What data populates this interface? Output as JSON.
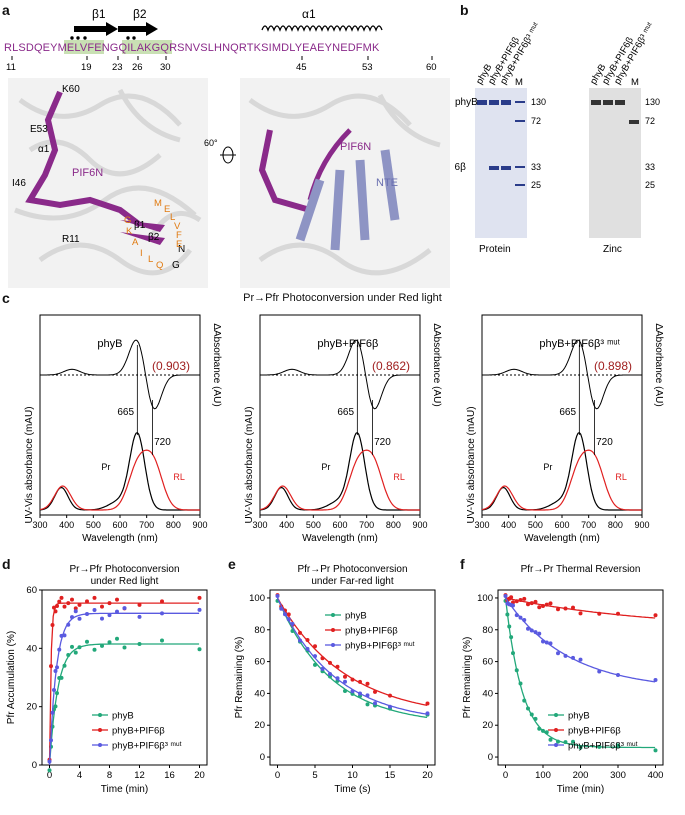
{
  "panel_letters": {
    "a": "a",
    "b": "b",
    "c": "c",
    "d": "d",
    "e": "e",
    "f": "f"
  },
  "panel_a": {
    "sequence": "RLSDQEYMELVFENGQILAKGQRSNVSLHNQRTKSIMDLYEAEYNEDFMK",
    "seq_numbers": [
      "11",
      "19",
      "23",
      "26",
      "30",
      "45",
      "53",
      "60"
    ],
    "sse_labels": {
      "b1": "β1",
      "b2": "β2",
      "a1": "α1"
    },
    "left_structure_labels": [
      "K60",
      "E53",
      "α1",
      "I46",
      "PIF6N",
      "R11",
      "β1",
      "β2",
      "N",
      "G"
    ],
    "orange_residues": [
      "M",
      "E",
      "L",
      "V",
      "F",
      "E",
      "G",
      "K",
      "A",
      "I",
      "L",
      "Q"
    ],
    "rotation": "60°",
    "right_structure_labels": [
      "PIF6N",
      "NTE"
    ]
  },
  "panel_b": {
    "lanes": [
      "phyB",
      "phyB+PIF6β",
      "phyB+PIF6β³ ᵐᵘᵗ",
      "M"
    ],
    "lanes_zinc": [
      "phyB",
      "phyB+PIF6β",
      "phyB+PIF6β³ ᵐᵘᵗ",
      "M"
    ],
    "left_labels": [
      "phyB",
      "PIF6β"
    ],
    "mw_protein": [
      "130",
      "72",
      "33",
      "25"
    ],
    "mw_zinc": [
      "130",
      "72",
      "33",
      "25"
    ],
    "captions": [
      "Protein",
      "Zinc"
    ]
  },
  "panel_c": {
    "title": "Pr→Pfr Photoconversion under Red light",
    "ylabel_left": "UV-Vis absorbance (mAU)",
    "ylabel_right": "ΔAbsorbance (AU)",
    "xlabel": "Wavelength (nm)",
    "xticks": [
      "300",
      "400",
      "500",
      "600",
      "700",
      "800",
      "900"
    ],
    "peak_labels": [
      "665",
      "720"
    ],
    "trace_labels": [
      "Pr",
      "RL"
    ],
    "subpanels": [
      {
        "title": "phyB",
        "ratio": "(0.903)"
      },
      {
        "title": "phyB+PIF6β",
        "ratio": "(0.862)"
      },
      {
        "title": "phyB+PIF6β³ ᵐᵘᵗ",
        "ratio": "(0.898)"
      }
    ]
  },
  "chart_data": [
    {
      "type": "line",
      "title": "Pr→Pfr Photoconversion under Red light",
      "xlabel": "Time (min)",
      "ylabel": "Pfr Accumulation (%)",
      "xlim": [
        -1,
        21
      ],
      "ylim": [
        0,
        60
      ],
      "xticks": [
        "0",
        "4",
        "8",
        "12",
        "16",
        "20"
      ],
      "yticks": [
        "0",
        "20",
        "40",
        "60"
      ],
      "legend": "bottom-right",
      "series": [
        {
          "name": "phyB",
          "color": "#22a87a",
          "plateau": 41.5,
          "rate": 0.9
        },
        {
          "name": "phyB+PIF6β",
          "color": "#e02020",
          "plateau": 55.5,
          "rate": 5.0
        },
        {
          "name": "phyB+PIF6β³ ᵐᵘᵗ",
          "color": "#5a5ae0",
          "plateau": 52,
          "rate": 1.1
        }
      ]
    },
    {
      "type": "line",
      "title": "Pfr→Pr Photoconversion under Far-red light",
      "xlabel": "Time (s)",
      "ylabel": "Pfr Remaining (%)",
      "xlim": [
        -1,
        21
      ],
      "ylim": [
        -5,
        105
      ],
      "xticks": [
        "0",
        "5",
        "10",
        "15",
        "20"
      ],
      "yticks": [
        "0",
        "20",
        "40",
        "60",
        "80",
        "100"
      ],
      "legend": "top-right",
      "series": [
        {
          "name": "phyB",
          "color": "#22a87a",
          "floor": 20,
          "rate": 0.14
        },
        {
          "name": "phyB+PIF6β",
          "color": "#e02020",
          "floor": 24,
          "rate": 0.11
        },
        {
          "name": "phyB+PIF6β³ ᵐᵘᵗ",
          "color": "#5a5ae0",
          "floor": 21,
          "rate": 0.13
        }
      ]
    },
    {
      "type": "line",
      "title": "Pfr→Pr Thermal Reversion",
      "xlabel": "Time (min)",
      "ylabel": "Pfr Remaining (%)",
      "xlim": [
        -20,
        420
      ],
      "ylim": [
        -5,
        105
      ],
      "xticks": [
        "0",
        "100",
        "200",
        "300",
        "400"
      ],
      "yticks": [
        "0",
        "20",
        "40",
        "60",
        "80",
        "100"
      ],
      "legend": "bottom-right",
      "series": [
        {
          "name": "phyB",
          "color": "#22a87a",
          "floor": 6,
          "rate": 0.022
        },
        {
          "name": "phyB+PIF6β",
          "color": "#e02020",
          "floor": 80,
          "rate": 0.0025
        },
        {
          "name": "phyB+PIF6β³ ᵐᵘᵗ",
          "color": "#5a5ae0",
          "floor": 42,
          "rate": 0.006
        }
      ]
    }
  ]
}
